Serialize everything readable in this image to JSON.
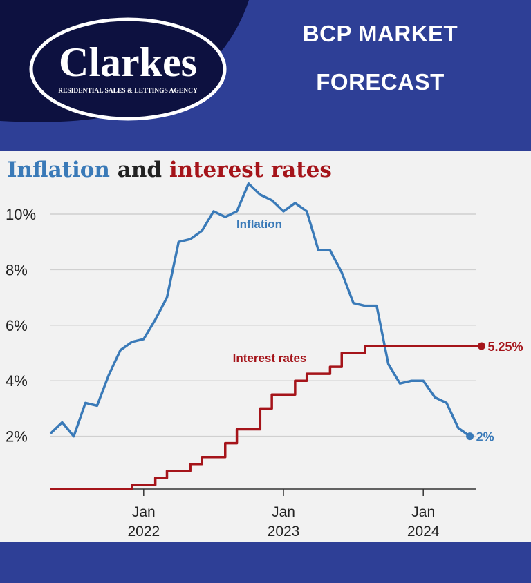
{
  "header": {
    "brand": "Clarkes",
    "brand_tagline": "RESIDENTIAL SALES & LETTINGS AGENCY",
    "forecast_line1": "BCP   MARKET",
    "forecast_line2": "FORECAST",
    "colors": {
      "band": "#2e3f96",
      "dark": "#0d1140",
      "white": "#ffffff"
    }
  },
  "chart_title": {
    "part1": "Inflation",
    "part2": " and ",
    "part3": "interest rates"
  },
  "chart_data": {
    "type": "line",
    "title": "Inflation and interest rates",
    "x_ticks": [
      {
        "x": "2022-01",
        "label1": "Jan",
        "label2": "2022"
      },
      {
        "x": "2023-01",
        "label1": "Jan",
        "label2": "2023"
      },
      {
        "x": "2024-01",
        "label1": "Jan",
        "label2": "2024"
      }
    ],
    "y_ticks": [
      {
        "value": 2,
        "label": "2%"
      },
      {
        "value": 4,
        "label": "4%"
      },
      {
        "value": 6,
        "label": "6%"
      },
      {
        "value": 8,
        "label": "8%"
      },
      {
        "value": 10,
        "label": "10%"
      }
    ],
    "ylim": [
      0,
      11
    ],
    "grid": true,
    "series": [
      {
        "name": "Inflation",
        "color": "#3a7ab8",
        "step": false,
        "end_label": "2%",
        "points": [
          [
            "2021-05",
            2.1
          ],
          [
            "2021-06",
            2.5
          ],
          [
            "2021-07",
            2.0
          ],
          [
            "2021-08",
            3.2
          ],
          [
            "2021-09",
            3.1
          ],
          [
            "2021-10",
            4.2
          ],
          [
            "2021-11",
            5.1
          ],
          [
            "2021-12",
            5.4
          ],
          [
            "2022-01",
            5.5
          ],
          [
            "2022-02",
            6.2
          ],
          [
            "2022-03",
            7.0
          ],
          [
            "2022-04",
            9.0
          ],
          [
            "2022-05",
            9.1
          ],
          [
            "2022-06",
            9.4
          ],
          [
            "2022-07",
            10.1
          ],
          [
            "2022-08",
            9.9
          ],
          [
            "2022-09",
            10.1
          ],
          [
            "2022-10",
            11.1
          ],
          [
            "2022-11",
            10.7
          ],
          [
            "2022-12",
            10.5
          ],
          [
            "2023-01",
            10.1
          ],
          [
            "2023-02",
            10.4
          ],
          [
            "2023-03",
            10.1
          ],
          [
            "2023-04",
            8.7
          ],
          [
            "2023-05",
            8.7
          ],
          [
            "2023-06",
            7.9
          ],
          [
            "2023-07",
            6.8
          ],
          [
            "2023-08",
            6.7
          ],
          [
            "2023-09",
            6.7
          ],
          [
            "2023-10",
            4.6
          ],
          [
            "2023-11",
            3.9
          ],
          [
            "2023-12",
            4.0
          ],
          [
            "2024-01",
            4.0
          ],
          [
            "2024-02",
            3.4
          ],
          [
            "2024-03",
            3.2
          ],
          [
            "2024-04",
            2.3
          ],
          [
            "2024-05",
            2.0
          ]
        ]
      },
      {
        "name": "Interest rates",
        "color": "#a5141a",
        "step": true,
        "end_label": "5.25%",
        "points": [
          [
            "2021-05",
            0.1
          ],
          [
            "2021-12",
            0.25
          ],
          [
            "2022-02",
            0.5
          ],
          [
            "2022-03",
            0.75
          ],
          [
            "2022-05",
            1.0
          ],
          [
            "2022-06",
            1.25
          ],
          [
            "2022-08",
            1.75
          ],
          [
            "2022-09",
            2.25
          ],
          [
            "2022-11",
            3.0
          ],
          [
            "2022-12",
            3.5
          ],
          [
            "2023-02",
            4.0
          ],
          [
            "2023-03",
            4.25
          ],
          [
            "2023-05",
            4.5
          ],
          [
            "2023-06",
            5.0
          ],
          [
            "2023-08",
            5.25
          ],
          [
            "2024-06",
            5.25
          ]
        ]
      }
    ]
  }
}
